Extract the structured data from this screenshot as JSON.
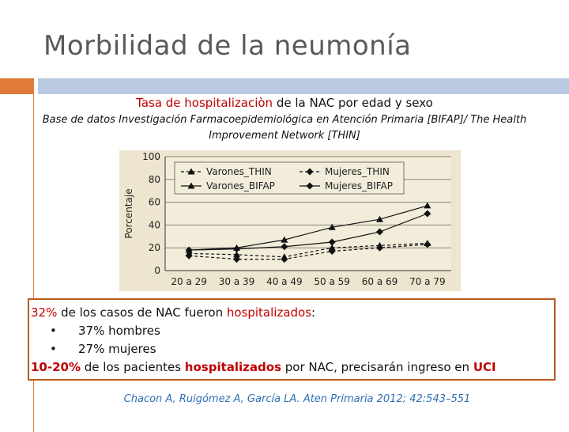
{
  "slide": {
    "title": "Morbilidad de la neumonía",
    "subtitle_parts": [
      "Tasa de hospitalizaciòn",
      " de la NAC por edad y sexo"
    ],
    "source_line": "Base de datos Investigación Farmacoepidemiológica en Atención Primaria [BIFAP]/ The Health Improvement Network  [THIN]",
    "colors": {
      "title": "#595959",
      "accent_orange": "#e07b39",
      "accent_blue": "#b9c9e2",
      "highlight_red": "#c00000",
      "citation_blue": "#2f6fb5"
    }
  },
  "callout": {
    "line1_pct": "32%",
    "line1_text": " de los casos de NAC fueron ",
    "line1_hl": "hospitalizados",
    "line1_end": ":",
    "bullets": [
      "37% hombres",
      "27% mujeres"
    ],
    "line4_pct": "10-20%",
    "line4_text": " de los pacientes ",
    "line4_hl": "hospitalizados",
    "line4_mid": " por NAC, precisarán ingreso en ",
    "line4_uci": "UCI"
  },
  "citation": "Chacon A, Ruigómez A, García LA. Aten Primaria 2012; 42:543–551",
  "chart_data": {
    "type": "line",
    "categories": [
      "20 a 29",
      "30 a 39",
      "40 a 49",
      "50 a 59",
      "60 a 69",
      "70 a 79"
    ],
    "ylabel": "Porcentaje",
    "yticks": [
      0,
      20,
      40,
      60,
      80,
      100
    ],
    "ylim": [
      0,
      100
    ],
    "grid": true,
    "legend_position": "top-left",
    "series": [
      {
        "name": "Varones_THIN",
        "marker": "triangle",
        "dash": "dashed",
        "values": [
          15,
          14,
          12,
          20,
          22,
          24
        ]
      },
      {
        "name": "Mujeres_THIN",
        "marker": "diamond",
        "dash": "dashed",
        "values": [
          13,
          10,
          10,
          17,
          20,
          23
        ]
      },
      {
        "name": "Varones_BIFAP",
        "marker": "triangle",
        "dash": "solid",
        "values": [
          18,
          20,
          27,
          38,
          45,
          57
        ]
      },
      {
        "name": "Mujeres_BIFAP",
        "marker": "diamond",
        "dash": "solid",
        "values": [
          18,
          19,
          21,
          25,
          34,
          50
        ]
      }
    ]
  }
}
